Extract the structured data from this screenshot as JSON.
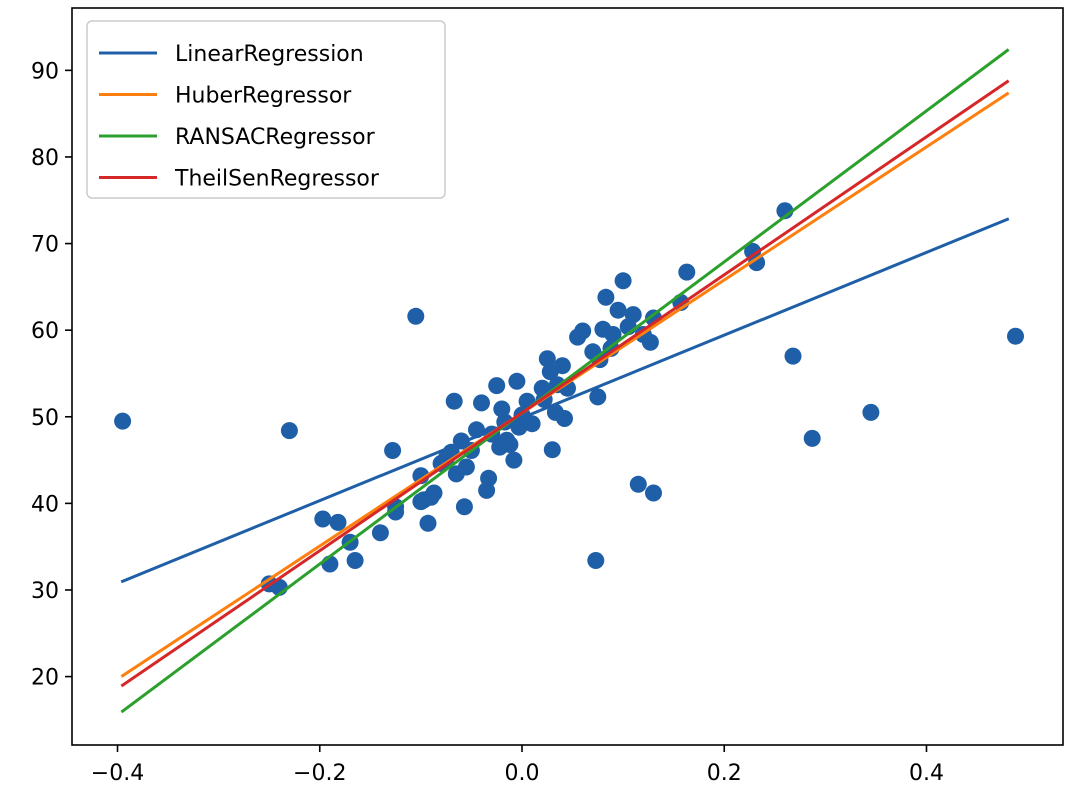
{
  "chart_data": {
    "type": "scatter",
    "title": "",
    "xlabel": "",
    "ylabel": "",
    "xlim": [
      -0.445,
      0.535
    ],
    "ylim": [
      12.1,
      97.2
    ],
    "grid": false,
    "legend_placement": "top-left",
    "xticks": [
      {
        "value": -0.4,
        "label": "−0.4"
      },
      {
        "value": -0.2,
        "label": "−0.2"
      },
      {
        "value": 0.0,
        "label": "0.0"
      },
      {
        "value": 0.2,
        "label": "0.2"
      },
      {
        "value": 0.4,
        "label": "0.4"
      }
    ],
    "yticks": [
      {
        "value": 20,
        "label": "20"
      },
      {
        "value": 30,
        "label": "30"
      },
      {
        "value": 40,
        "label": "40"
      },
      {
        "value": 50,
        "label": "50"
      },
      {
        "value": 60,
        "label": "60"
      },
      {
        "value": 70,
        "label": "70"
      },
      {
        "value": 80,
        "label": "80"
      },
      {
        "value": 90,
        "label": "90"
      }
    ],
    "scatter": {
      "color": "#1f5fa8",
      "points": [
        [
          -0.395,
          49.5
        ],
        [
          -0.25,
          30.7
        ],
        [
          -0.24,
          30.3
        ],
        [
          -0.23,
          48.4
        ],
        [
          -0.197,
          38.2
        ],
        [
          -0.19,
          33.0
        ],
        [
          -0.182,
          37.8
        ],
        [
          -0.17,
          35.5
        ],
        [
          -0.165,
          33.4
        ],
        [
          -0.14,
          36.6
        ],
        [
          -0.128,
          46.1
        ],
        [
          -0.125,
          39.0
        ],
        [
          -0.125,
          39.6
        ],
        [
          -0.105,
          61.6
        ],
        [
          -0.1,
          43.2
        ],
        [
          -0.1,
          40.2
        ],
        [
          -0.097,
          40.4
        ],
        [
          -0.093,
          37.7
        ],
        [
          -0.09,
          40.7
        ],
        [
          -0.087,
          41.2
        ],
        [
          -0.08,
          44.6
        ],
        [
          -0.075,
          45.2
        ],
        [
          -0.07,
          45.9
        ],
        [
          -0.067,
          51.8
        ],
        [
          -0.065,
          43.4
        ],
        [
          -0.06,
          47.2
        ],
        [
          -0.057,
          39.6
        ],
        [
          -0.055,
          44.2
        ],
        [
          -0.05,
          46.1
        ],
        [
          -0.045,
          48.5
        ],
        [
          -0.04,
          51.6
        ],
        [
          -0.035,
          41.5
        ],
        [
          -0.033,
          42.9
        ],
        [
          -0.03,
          48.0
        ],
        [
          -0.025,
          53.6
        ],
        [
          -0.022,
          46.5
        ],
        [
          -0.02,
          50.9
        ],
        [
          -0.017,
          49.4
        ],
        [
          -0.015,
          47.3
        ],
        [
          -0.012,
          46.8
        ],
        [
          -0.008,
          45.0
        ],
        [
          -0.005,
          54.1
        ],
        [
          -0.003,
          48.8
        ],
        [
          0.0,
          50.2
        ],
        [
          0.005,
          51.8
        ],
        [
          0.01,
          49.2
        ],
        [
          0.02,
          53.3
        ],
        [
          0.022,
          52.0
        ],
        [
          0.025,
          56.7
        ],
        [
          0.028,
          55.2
        ],
        [
          0.03,
          46.2
        ],
        [
          0.033,
          50.5
        ],
        [
          0.035,
          53.7
        ],
        [
          0.04,
          55.9
        ],
        [
          0.042,
          49.8
        ],
        [
          0.045,
          53.3
        ],
        [
          0.055,
          59.2
        ],
        [
          0.06,
          59.9
        ],
        [
          0.07,
          57.5
        ],
        [
          0.073,
          33.4
        ],
        [
          0.075,
          52.3
        ],
        [
          0.077,
          56.6
        ],
        [
          0.08,
          60.1
        ],
        [
          0.083,
          63.8
        ],
        [
          0.088,
          57.9
        ],
        [
          0.09,
          59.5
        ],
        [
          0.095,
          62.3
        ],
        [
          0.1,
          65.7
        ],
        [
          0.105,
          60.4
        ],
        [
          0.11,
          61.8
        ],
        [
          0.115,
          42.2
        ],
        [
          0.12,
          59.5
        ],
        [
          0.127,
          58.6
        ],
        [
          0.13,
          61.4
        ],
        [
          0.13,
          41.2
        ],
        [
          0.157,
          63.2
        ],
        [
          0.163,
          66.7
        ],
        [
          0.228,
          69.1
        ],
        [
          0.232,
          67.8
        ],
        [
          0.26,
          73.8
        ],
        [
          0.268,
          57.0
        ],
        [
          0.287,
          47.5
        ],
        [
          0.345,
          50.5
        ],
        [
          0.488,
          59.3
        ]
      ]
    },
    "series": [
      {
        "name": "LinearRegression",
        "color": "#1f5fa8",
        "x": [
          -0.395,
          0.48
        ],
        "y": [
          31.0,
          72.8
        ]
      },
      {
        "name": "HuberRegressor",
        "color": "#ff7f0e",
        "x": [
          -0.395,
          0.48
        ],
        "y": [
          20.1,
          87.3
        ]
      },
      {
        "name": "RANSACRegressor",
        "color": "#2ca02c",
        "x": [
          -0.395,
          0.48
        ],
        "y": [
          16.0,
          92.3
        ]
      },
      {
        "name": "TheilSenRegressor",
        "color": "#d62728",
        "x": [
          -0.395,
          0.48
        ],
        "y": [
          19.0,
          88.7
        ]
      }
    ]
  }
}
